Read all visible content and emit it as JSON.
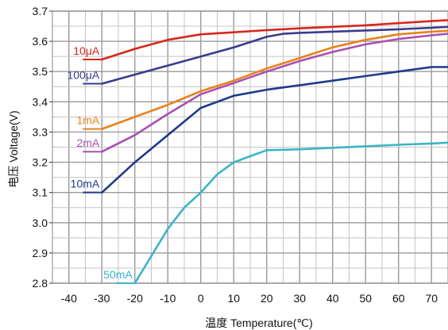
{
  "chart_data": {
    "type": "line",
    "title": "",
    "xlabel": "温度 Temperature(℃)",
    "ylabel": "电压 Voltage(V)",
    "xlim": [
      -45,
      75
    ],
    "ylim": [
      2.8,
      3.7
    ],
    "grid": true,
    "x_ticks": [
      "-40",
      "-30",
      "-20",
      "-10",
      "0",
      "10",
      "20",
      "30",
      "40",
      "50",
      "60",
      "70"
    ],
    "y_ticks": [
      "2.8",
      "2.9",
      "3.0",
      "3.1",
      "3.2",
      "3.3",
      "3.4",
      "3.5",
      "3.6",
      "3.7"
    ],
    "series": [
      {
        "name": "10μA",
        "color": "#d9261c",
        "x": [
          -30,
          -20,
          -10,
          0,
          10,
          20,
          30,
          40,
          50,
          60,
          70,
          75
        ],
        "y": [
          3.54,
          3.575,
          3.605,
          3.623,
          3.63,
          3.637,
          3.643,
          3.648,
          3.653,
          3.66,
          3.667,
          3.67
        ]
      },
      {
        "name": "100μA",
        "color": "#3a3b8f",
        "x": [
          -30,
          -20,
          -10,
          0,
          10,
          20,
          25,
          30,
          40,
          50,
          60,
          70,
          75
        ],
        "y": [
          3.46,
          3.49,
          3.52,
          3.55,
          3.58,
          3.615,
          3.625,
          3.628,
          3.632,
          3.636,
          3.64,
          3.645,
          3.648
        ]
      },
      {
        "name": "1mA",
        "color": "#e8821a",
        "x": [
          -30,
          -20,
          -10,
          0,
          10,
          20,
          30,
          40,
          50,
          60,
          70,
          75
        ],
        "y": [
          3.31,
          3.35,
          3.39,
          3.435,
          3.47,
          3.51,
          3.545,
          3.58,
          3.605,
          3.623,
          3.632,
          3.635
        ]
      },
      {
        "name": "2mA",
        "color": "#a851b0",
        "x": [
          -30,
          -20,
          -10,
          0,
          10,
          20,
          30,
          40,
          50,
          60,
          70,
          75
        ],
        "y": [
          3.235,
          3.29,
          3.36,
          3.425,
          3.462,
          3.5,
          3.535,
          3.565,
          3.59,
          3.608,
          3.62,
          3.625
        ]
      },
      {
        "name": "10mA",
        "color": "#1e3a8a",
        "x": [
          -30,
          -20,
          -10,
          0,
          10,
          20,
          30,
          40,
          50,
          60,
          70,
          75
        ],
        "y": [
          3.1,
          3.2,
          3.29,
          3.38,
          3.42,
          3.44,
          3.455,
          3.47,
          3.485,
          3.5,
          3.515,
          3.515
        ]
      },
      {
        "name": "50mA",
        "color": "#3ab5c6",
        "x": [
          -20,
          -10,
          -5,
          0,
          5,
          10,
          15,
          20,
          30,
          40,
          50,
          60,
          70,
          75
        ],
        "y": [
          2.8,
          2.98,
          3.05,
          3.1,
          3.16,
          3.2,
          3.22,
          3.24,
          3.243,
          3.248,
          3.253,
          3.258,
          3.262,
          3.265
        ]
      }
    ]
  }
}
